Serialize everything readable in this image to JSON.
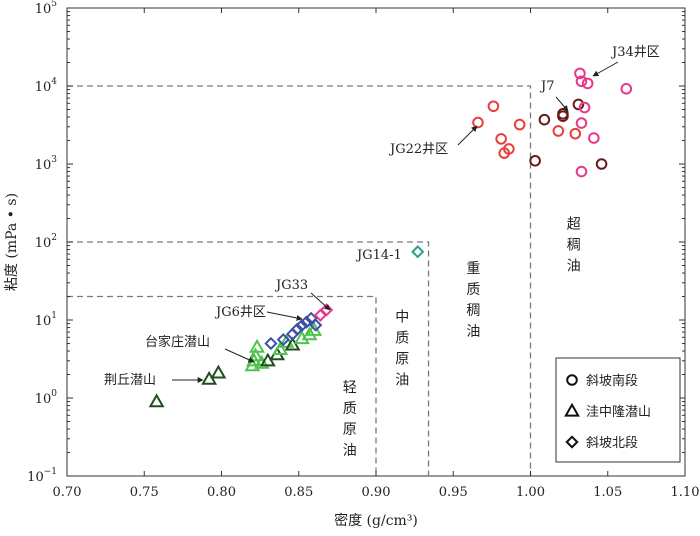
{
  "chart_data": {
    "type": "scatter",
    "xlabel": "密度 (g/cm³)",
    "ylabel": "粘度 (mPa • s)",
    "xlim": [
      0.7,
      1.1
    ],
    "ylim_log10": [
      -1,
      5
    ],
    "y_scale": "log",
    "x_ticks": [
      "0.70",
      "0.75",
      "0.80",
      "0.85",
      "0.90",
      "0.95",
      "1.00",
      "1.05",
      "1.10"
    ],
    "y_ticks": [
      {
        "base": "10",
        "exp": "−1"
      },
      {
        "base": "10",
        "exp": "0"
      },
      {
        "base": "10",
        "exp": "1"
      },
      {
        "base": "10",
        "exp": "2"
      },
      {
        "base": "10",
        "exp": "3"
      },
      {
        "base": "10",
        "exp": "4"
      },
      {
        "base": "10",
        "exp": "5"
      }
    ],
    "series": [
      {
        "name": "斜坡南段",
        "marker": "circle",
        "points": [
          {
            "x": 0.966,
            "y": 3400,
            "color": "#e8403c"
          },
          {
            "x": 0.976,
            "y": 5500,
            "color": "#e8403c"
          },
          {
            "x": 0.981,
            "y": 2100,
            "color": "#e8403c"
          },
          {
            "x": 0.983,
            "y": 1380,
            "color": "#e8403c"
          },
          {
            "x": 0.986,
            "y": 1560,
            "color": "#e8403c"
          },
          {
            "x": 0.993,
            "y": 3200,
            "color": "#e8403c"
          },
          {
            "x": 1.003,
            "y": 1100,
            "color": "#6b1a1a"
          },
          {
            "x": 1.009,
            "y": 3700,
            "color": "#6b1a1a"
          },
          {
            "x": 1.018,
            "y": 2650,
            "color": "#e8403c"
          },
          {
            "x": 1.021,
            "y": 4100,
            "color": "#6b1a1a"
          },
          {
            "x": 1.021,
            "y": 4400,
            "color": "#6b1a1a"
          },
          {
            "x": 1.029,
            "y": 2450,
            "color": "#e8403c"
          },
          {
            "x": 1.031,
            "y": 5800,
            "color": "#6b1a1a"
          },
          {
            "x": 1.032,
            "y": 14500,
            "color": "#e6398a"
          },
          {
            "x": 1.033,
            "y": 11500,
            "color": "#e6398a"
          },
          {
            "x": 1.033,
            "y": 3350,
            "color": "#e6398a"
          },
          {
            "x": 1.033,
            "y": 800,
            "color": "#e6398a"
          },
          {
            "x": 1.035,
            "y": 5300,
            "color": "#e6398a"
          },
          {
            "x": 1.037,
            "y": 10800,
            "color": "#e6398a"
          },
          {
            "x": 1.041,
            "y": 2150,
            "color": "#e6398a"
          },
          {
            "x": 1.046,
            "y": 1000,
            "color": "#6b1a1a"
          },
          {
            "x": 1.062,
            "y": 9200,
            "color": "#e6398a"
          }
        ]
      },
      {
        "name": "洼中隆潜山",
        "marker": "triangle",
        "points": [
          {
            "x": 0.758,
            "y": 0.9,
            "color": "#1f4d1f"
          },
          {
            "x": 0.792,
            "y": 1.75,
            "color": "#1f4d1f"
          },
          {
            "x": 0.798,
            "y": 2.1,
            "color": "#1f4d1f"
          },
          {
            "x": 0.82,
            "y": 2.6,
            "color": "#4ec24e"
          },
          {
            "x": 0.821,
            "y": 3.0,
            "color": "#4ec24e"
          },
          {
            "x": 0.822,
            "y": 3.5,
            "color": "#4ec24e"
          },
          {
            "x": 0.823,
            "y": 4.5,
            "color": "#4ec24e"
          },
          {
            "x": 0.826,
            "y": 2.8,
            "color": "#4ec24e"
          },
          {
            "x": 0.83,
            "y": 3.0,
            "color": "#1f4d1f"
          },
          {
            "x": 0.836,
            "y": 3.6,
            "color": "#1f4d1f"
          },
          {
            "x": 0.838,
            "y": 4.2,
            "color": "#4ec24e"
          },
          {
            "x": 0.842,
            "y": 5.2,
            "color": "#4ec24e"
          },
          {
            "x": 0.846,
            "y": 4.8,
            "color": "#1f4d1f"
          },
          {
            "x": 0.852,
            "y": 5.8,
            "color": "#4ec24e"
          },
          {
            "x": 0.857,
            "y": 6.5,
            "color": "#4ec24e"
          },
          {
            "x": 0.86,
            "y": 7.4,
            "color": "#4ec24e"
          }
        ]
      },
      {
        "name": "斜坡北段",
        "marker": "diamond",
        "points": [
          {
            "x": 0.832,
            "y": 5.0,
            "color": "#3d4fa8"
          },
          {
            "x": 0.84,
            "y": 5.6,
            "color": "#3d4fa8"
          },
          {
            "x": 0.846,
            "y": 6.6,
            "color": "#3d4fa8"
          },
          {
            "x": 0.849,
            "y": 7.6,
            "color": "#3d4fa8"
          },
          {
            "x": 0.852,
            "y": 8.5,
            "color": "#3d4fa8"
          },
          {
            "x": 0.855,
            "y": 9.4,
            "color": "#3d4fa8"
          },
          {
            "x": 0.858,
            "y": 10.5,
            "color": "#3d4fa8"
          },
          {
            "x": 0.861,
            "y": 8.6,
            "color": "#3d4fa8"
          },
          {
            "x": 0.864,
            "y": 11.5,
            "color": "#e6398a"
          },
          {
            "x": 0.868,
            "y": 13.5,
            "color": "#e6398a"
          },
          {
            "x": 0.927,
            "y": 75,
            "color": "#2a9f8a"
          }
        ]
      }
    ],
    "legend": {
      "placement": "bottom-right",
      "items": [
        {
          "label": "斜坡南段",
          "marker": "circle"
        },
        {
          "label": "洼中隆潜山",
          "marker": "triangle"
        },
        {
          "label": "斜坡北段",
          "marker": "diamond"
        }
      ]
    },
    "regions": [
      {
        "label": "轻质原油",
        "x_max": 0.9,
        "y_max": 20
      },
      {
        "label": "中质原油",
        "x_max": 0.934,
        "y_max": 100
      },
      {
        "label": "重质稠油",
        "x_max": 1.0,
        "y_max": 10000
      },
      {
        "label": "超稠油"
      }
    ],
    "annotations": [
      {
        "text": "J34井区",
        "target": {
          "x": 1.035,
          "y": 11000
        }
      },
      {
        "text": "J7",
        "target": {
          "x": 1.021,
          "y": 4300
        }
      },
      {
        "text": "JG22井区",
        "target": {
          "x": 0.964,
          "y": 3400
        }
      },
      {
        "text": "JG14-1",
        "target": {
          "x": 0.927,
          "y": 75
        }
      },
      {
        "text": "JG33",
        "target": {
          "x": 0.866,
          "y": 13
        }
      },
      {
        "text": "JG6井区",
        "target": {
          "x": 0.852,
          "y": 8.8
        }
      },
      {
        "text": "台家庄潜山",
        "target": {
          "x": 0.819,
          "y": 3.0
        }
      },
      {
        "text": "荆丘潜山",
        "target": {
          "x": 0.788,
          "y": 1.75
        }
      }
    ]
  }
}
